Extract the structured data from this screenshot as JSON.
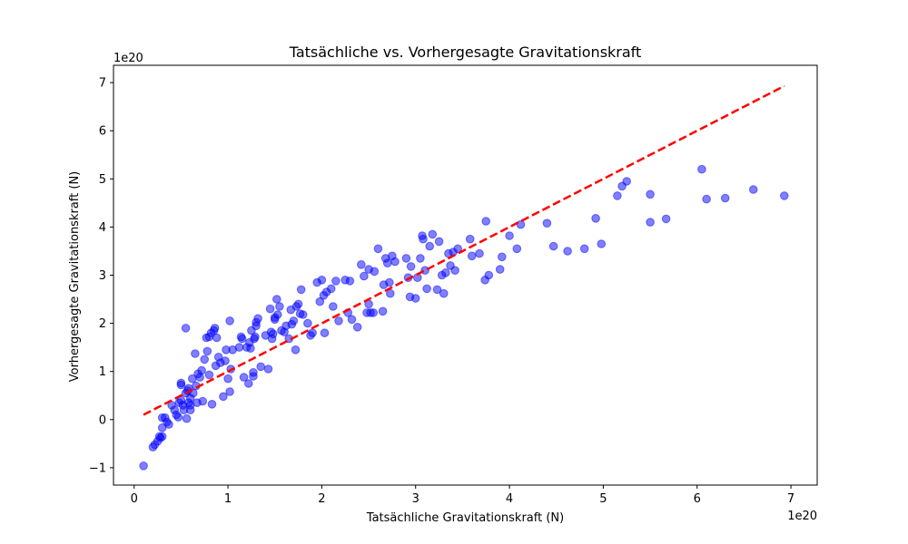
{
  "chart_data": {
    "type": "scatter",
    "title": "Tatsächliche vs. Vorhergesagte Gravitationskraft",
    "xlabel": "Tatsächliche Gravitationskraft (N)",
    "ylabel": "Vorhergesagte Gravitationskraft (N)",
    "x_offset_label": "1e20",
    "y_offset_label": "1e20",
    "xlim": [
      -0.22,
      7.28
    ],
    "ylim": [
      -1.36,
      7.36
    ],
    "xticks": [
      0,
      1,
      2,
      3,
      4,
      5,
      6,
      7
    ],
    "yticks": [
      -1,
      0,
      1,
      2,
      3,
      4,
      5,
      6,
      7
    ],
    "xtick_labels": [
      "0",
      "1",
      "2",
      "3",
      "4",
      "5",
      "6",
      "7"
    ],
    "ytick_labels": [
      "−1",
      "0",
      "1",
      "2",
      "3",
      "4",
      "5",
      "6",
      "7"
    ],
    "grid": false,
    "point_color": "#0000ff",
    "point_alpha": 0.5,
    "line_color": "#ff0000",
    "reference_line": {
      "style": "dashed",
      "x": [
        0.1,
        6.93
      ],
      "y": [
        0.1,
        6.93
      ]
    },
    "points": [
      [
        0.1,
        -0.96
      ],
      [
        0.2,
        -0.57
      ],
      [
        0.22,
        -0.52
      ],
      [
        0.25,
        -0.45
      ],
      [
        0.27,
        -0.35
      ],
      [
        0.28,
        -0.38
      ],
      [
        0.3,
        -0.35
      ],
      [
        0.3,
        -0.17
      ],
      [
        0.3,
        0.04
      ],
      [
        0.33,
        0.04
      ],
      [
        0.35,
        -0.05
      ],
      [
        0.37,
        -0.1
      ],
      [
        0.4,
        0.3
      ],
      [
        0.43,
        0.2
      ],
      [
        0.45,
        0.1
      ],
      [
        0.47,
        0.05
      ],
      [
        0.48,
        0.35
      ],
      [
        0.5,
        0.76
      ],
      [
        0.5,
        0.72
      ],
      [
        0.5,
        0.4
      ],
      [
        0.52,
        0.3
      ],
      [
        0.53,
        0.2
      ],
      [
        0.55,
        1.9
      ],
      [
        0.55,
        0.55
      ],
      [
        0.56,
        0.02
      ],
      [
        0.57,
        0.6
      ],
      [
        0.58,
        0.65
      ],
      [
        0.58,
        0.35
      ],
      [
        0.6,
        0.45
      ],
      [
        0.6,
        0.3
      ],
      [
        0.6,
        0.2
      ],
      [
        0.62,
        0.85
      ],
      [
        0.63,
        0.55
      ],
      [
        0.65,
        1.37
      ],
      [
        0.66,
        0.7
      ],
      [
        0.67,
        0.35
      ],
      [
        0.68,
        0.95
      ],
      [
        0.7,
        0.88
      ],
      [
        0.72,
        1.02
      ],
      [
        0.73,
        0.38
      ],
      [
        0.75,
        1.25
      ],
      [
        0.77,
        1.7
      ],
      [
        0.78,
        1.42
      ],
      [
        0.8,
        0.93
      ],
      [
        0.8,
        1.72
      ],
      [
        0.82,
        1.8
      ],
      [
        0.83,
        0.32
      ],
      [
        0.85,
        1.85
      ],
      [
        0.86,
        1.9
      ],
      [
        0.87,
        1.12
      ],
      [
        0.88,
        1.7
      ],
      [
        0.9,
        1.3
      ],
      [
        0.92,
        1.18
      ],
      [
        0.95,
        0.48
      ],
      [
        0.97,
        1.22
      ],
      [
        0.98,
        1.45
      ],
      [
        1.0,
        0.85
      ],
      [
        1.02,
        0.58
      ],
      [
        1.02,
        2.05
      ],
      [
        1.03,
        1.05
      ],
      [
        1.05,
        1.45
      ],
      [
        1.12,
        1.5
      ],
      [
        1.14,
        1.72
      ],
      [
        1.15,
        1.68
      ],
      [
        1.17,
        0.88
      ],
      [
        1.2,
        1.5
      ],
      [
        1.22,
        0.75
      ],
      [
        1.23,
        1.6
      ],
      [
        1.24,
        1.48
      ],
      [
        1.25,
        1.85
      ],
      [
        1.27,
        0.9
      ],
      [
        1.27,
        0.98
      ],
      [
        1.28,
        1.68
      ],
      [
        1.29,
        1.72
      ],
      [
        1.3,
        1.95
      ],
      [
        1.3,
        2.02
      ],
      [
        1.32,
        2.1
      ],
      [
        1.35,
        1.1
      ],
      [
        1.4,
        1.75
      ],
      [
        1.43,
        1.05
      ],
      [
        1.45,
        2.3
      ],
      [
        1.46,
        1.82
      ],
      [
        1.47,
        1.68
      ],
      [
        1.48,
        1.78
      ],
      [
        1.5,
        2.12
      ],
      [
        1.5,
        2.08
      ],
      [
        1.52,
        2.5
      ],
      [
        1.53,
        2.18
      ],
      [
        1.55,
        2.35
      ],
      [
        1.57,
        1.85
      ],
      [
        1.6,
        1.82
      ],
      [
        1.62,
        1.95
      ],
      [
        1.65,
        1.68
      ],
      [
        1.67,
        2.28
      ],
      [
        1.68,
        1.98
      ],
      [
        1.7,
        2.05
      ],
      [
        1.72,
        1.45
      ],
      [
        1.73,
        2.35
      ],
      [
        1.75,
        2.4
      ],
      [
        1.77,
        2.2
      ],
      [
        1.78,
        2.7
      ],
      [
        1.8,
        2.18
      ],
      [
        1.85,
        2.0
      ],
      [
        1.88,
        1.75
      ],
      [
        1.9,
        1.8
      ],
      [
        1.95,
        2.85
      ],
      [
        1.98,
        2.45
      ],
      [
        2.0,
        2.9
      ],
      [
        2.02,
        2.58
      ],
      [
        2.03,
        1.8
      ],
      [
        2.05,
        2.65
      ],
      [
        2.1,
        2.72
      ],
      [
        2.12,
        2.35
      ],
      [
        2.15,
        2.88
      ],
      [
        2.18,
        2.05
      ],
      [
        2.25,
        2.9
      ],
      [
        2.28,
        2.22
      ],
      [
        2.3,
        2.88
      ],
      [
        2.32,
        2.08
      ],
      [
        2.38,
        1.92
      ],
      [
        2.42,
        3.22
      ],
      [
        2.45,
        2.98
      ],
      [
        2.48,
        2.22
      ],
      [
        2.5,
        3.12
      ],
      [
        2.5,
        2.4
      ],
      [
        2.52,
        2.22
      ],
      [
        2.55,
        2.22
      ],
      [
        2.56,
        3.08
      ],
      [
        2.6,
        3.55
      ],
      [
        2.65,
        2.25
      ],
      [
        2.66,
        2.8
      ],
      [
        2.68,
        3.35
      ],
      [
        2.7,
        3.25
      ],
      [
        2.72,
        2.85
      ],
      [
        2.73,
        2.62
      ],
      [
        2.75,
        3.4
      ],
      [
        2.78,
        3.28
      ],
      [
        2.9,
        3.35
      ],
      [
        2.92,
        2.95
      ],
      [
        2.94,
        2.55
      ],
      [
        2.95,
        3.18
      ],
      [
        3.0,
        2.52
      ],
      [
        3.02,
        2.95
      ],
      [
        3.05,
        3.35
      ],
      [
        3.07,
        3.82
      ],
      [
        3.08,
        3.75
      ],
      [
        3.1,
        3.1
      ],
      [
        3.12,
        2.72
      ],
      [
        3.15,
        3.6
      ],
      [
        3.18,
        3.85
      ],
      [
        3.23,
        2.7
      ],
      [
        3.25,
        3.7
      ],
      [
        3.28,
        3.0
      ],
      [
        3.3,
        2.62
      ],
      [
        3.32,
        3.05
      ],
      [
        3.35,
        3.45
      ],
      [
        3.37,
        3.2
      ],
      [
        3.4,
        3.48
      ],
      [
        3.42,
        3.1
      ],
      [
        3.45,
        3.55
      ],
      [
        3.58,
        3.75
      ],
      [
        3.6,
        3.4
      ],
      [
        3.68,
        3.45
      ],
      [
        3.74,
        2.9
      ],
      [
        3.75,
        4.12
      ],
      [
        3.78,
        3.0
      ],
      [
        3.9,
        3.12
      ],
      [
        3.92,
        3.38
      ],
      [
        4.0,
        3.82
      ],
      [
        4.08,
        3.55
      ],
      [
        4.12,
        4.05
      ],
      [
        4.4,
        4.08
      ],
      [
        4.47,
        3.6
      ],
      [
        4.62,
        3.5
      ],
      [
        4.8,
        3.55
      ],
      [
        4.92,
        4.18
      ],
      [
        4.98,
        3.65
      ],
      [
        5.15,
        4.65
      ],
      [
        5.2,
        4.85
      ],
      [
        5.25,
        4.95
      ],
      [
        5.5,
        4.68
      ],
      [
        5.5,
        4.1
      ],
      [
        5.67,
        4.17
      ],
      [
        6.05,
        5.2
      ],
      [
        6.1,
        4.58
      ],
      [
        6.3,
        4.6
      ],
      [
        6.6,
        4.78
      ],
      [
        6.93,
        4.65
      ]
    ]
  }
}
